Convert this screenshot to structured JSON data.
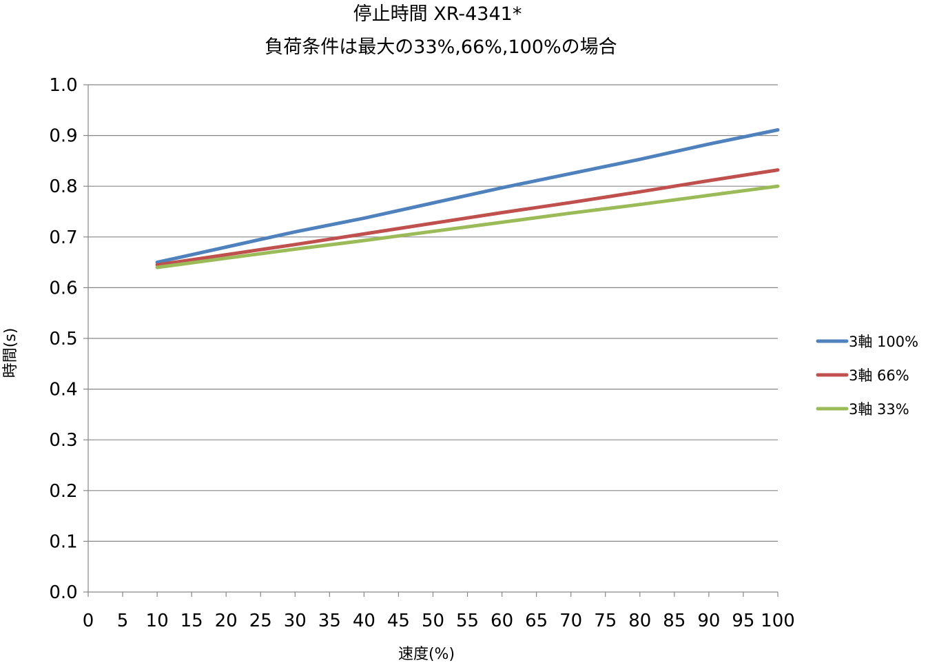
{
  "chart_data": {
    "type": "line",
    "title": "停止時間 XR-4341*",
    "subtitle": "負荷条件は最大の33%,66%,100%の場合",
    "xlabel": "速度(%)",
    "ylabel": "時間(s)",
    "xlim": [
      0,
      100
    ],
    "ylim": [
      0,
      1.0
    ],
    "x_ticks": [
      0,
      5,
      10,
      15,
      20,
      25,
      30,
      35,
      40,
      45,
      50,
      55,
      60,
      65,
      70,
      75,
      80,
      85,
      90,
      95,
      100
    ],
    "y_ticks": [
      0.0,
      0.1,
      0.2,
      0.3,
      0.4,
      0.5,
      0.6,
      0.7,
      0.8,
      0.9,
      1.0
    ],
    "x_tick_labels": [
      "0",
      "5",
      "10",
      "15",
      "20",
      "25",
      "30",
      "35",
      "40",
      "45",
      "50",
      "55",
      "60",
      "65",
      "70",
      "75",
      "80",
      "85",
      "90",
      "95",
      "100"
    ],
    "y_tick_labels": [
      "0.0",
      "0.1",
      "0.2",
      "0.3",
      "0.4",
      "0.5",
      "0.6",
      "0.7",
      "0.8",
      "0.9",
      "1.0"
    ],
    "grid": true,
    "legend_position": "right",
    "series": [
      {
        "name": "3軸 100%",
        "color": "#4F81BD",
        "x": [
          10,
          20,
          30,
          40,
          50,
          60,
          70,
          80,
          90,
          100
        ],
        "y": [
          0.65,
          0.68,
          0.71,
          0.737,
          0.767,
          0.797,
          0.825,
          0.853,
          0.883,
          0.911
        ]
      },
      {
        "name": "3軸 66%",
        "color": "#C0504D",
        "x": [
          10,
          20,
          30,
          40,
          50,
          60,
          70,
          80,
          90,
          100
        ],
        "y": [
          0.645,
          0.665,
          0.685,
          0.706,
          0.727,
          0.748,
          0.768,
          0.789,
          0.811,
          0.832
        ]
      },
      {
        "name": "3軸 33%",
        "color": "#9BBB59",
        "x": [
          10,
          20,
          30,
          40,
          50,
          60,
          70,
          80,
          90,
          100
        ],
        "y": [
          0.64,
          0.658,
          0.676,
          0.693,
          0.711,
          0.729,
          0.747,
          0.764,
          0.782,
          0.8
        ]
      }
    ]
  }
}
